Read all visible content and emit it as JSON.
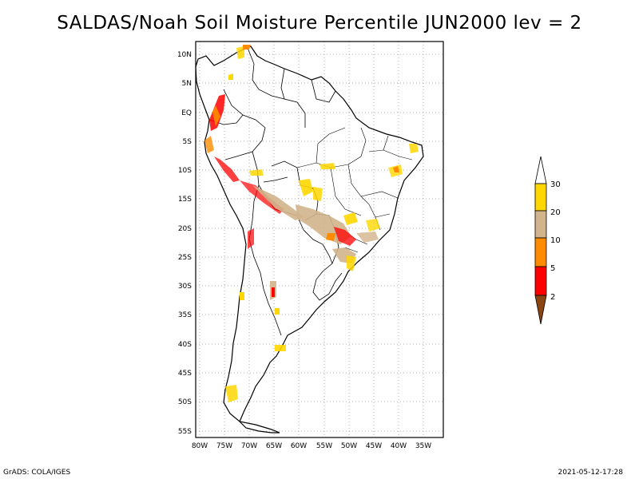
{
  "title": "SALDAS/Noah Soil Moisture Percentile JUN2000 lev = 2",
  "footer": {
    "credit": "GrADS: COLA/IGES",
    "timestamp": "2021-05-12-17:28"
  },
  "map": {
    "lat_labels": [
      "10N",
      "5N",
      "EQ",
      "5S",
      "10S",
      "15S",
      "20S",
      "25S",
      "30S",
      "35S",
      "40S",
      "45S",
      "50S",
      "55S"
    ],
    "lon_labels": [
      "80W",
      "75W",
      "70W",
      "65W",
      "60W",
      "55W",
      "50W",
      "45W",
      "40W",
      "35W"
    ]
  },
  "colorbar": {
    "labels": [
      "2",
      "5",
      "10",
      "20",
      "30"
    ],
    "colors": {
      "below_2": "#8b4513",
      "2_5": "#ff0000",
      "5_10": "#ff8c00",
      "10_20": "#d2b48c",
      "20_30": "#ffd700",
      "above_30": "#ffffff"
    }
  }
}
